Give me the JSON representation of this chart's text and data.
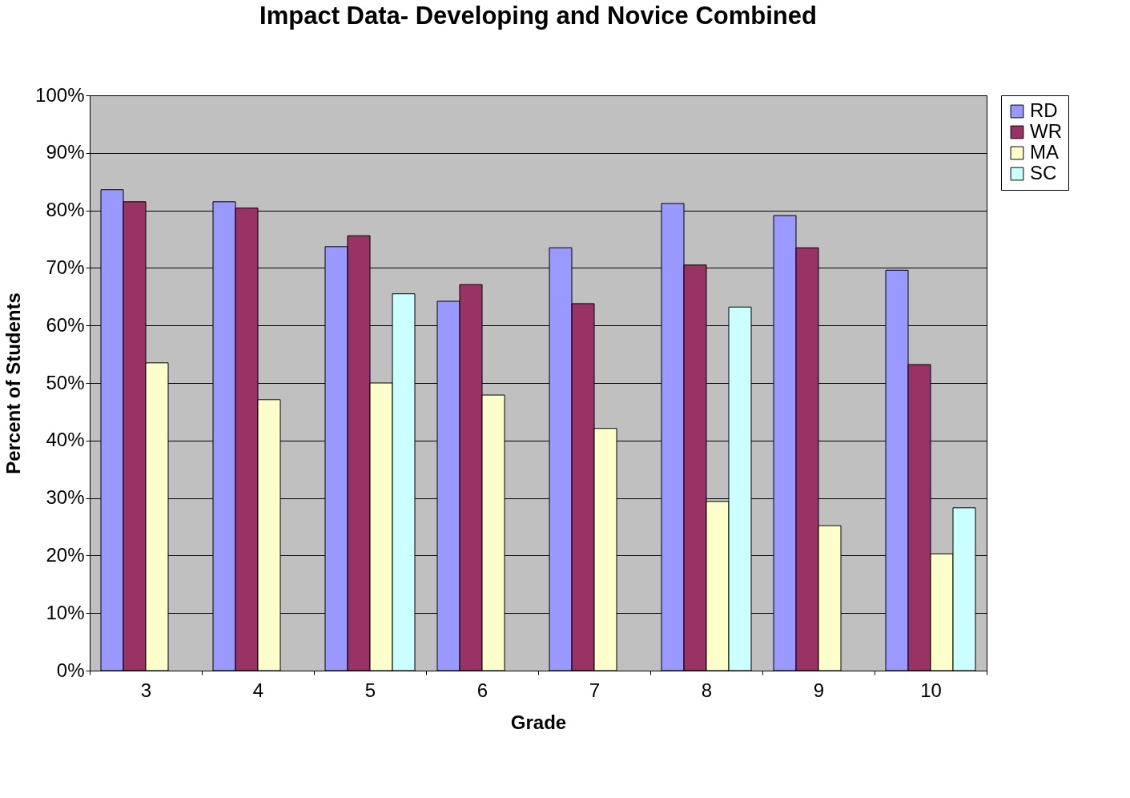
{
  "chart_data": {
    "type": "bar",
    "title": "Impact Data- Developing and Novice Combined",
    "xlabel": "Grade",
    "ylabel": "Percent of Students",
    "categories": [
      "3",
      "4",
      "5",
      "6",
      "7",
      "8",
      "9",
      "10"
    ],
    "series": [
      {
        "name": "RD",
        "color": "#9999ff",
        "values": [
          83.6,
          81.5,
          73.7,
          64.2,
          73.5,
          81.2,
          79.1,
          69.6
        ]
      },
      {
        "name": "WR",
        "color": "#993366",
        "values": [
          81.5,
          80.4,
          75.6,
          67.1,
          63.8,
          70.5,
          73.5,
          53.2
        ]
      },
      {
        "name": "MA",
        "color": "#ffffcc",
        "values": [
          53.5,
          47.1,
          50.0,
          47.9,
          42.1,
          29.4,
          25.2,
          20.3
        ]
      },
      {
        "name": "SC",
        "color": "#ccffff",
        "values": [
          null,
          null,
          65.5,
          null,
          null,
          63.2,
          null,
          28.3
        ]
      }
    ],
    "ylim": [
      0,
      100
    ],
    "yticks": [
      {
        "value": 0,
        "label": "0%"
      },
      {
        "value": 10,
        "label": "10%"
      },
      {
        "value": 20,
        "label": "20%"
      },
      {
        "value": 30,
        "label": "30%"
      },
      {
        "value": 40,
        "label": "40%"
      },
      {
        "value": 50,
        "label": "50%"
      },
      {
        "value": 60,
        "label": "60%"
      },
      {
        "value": 70,
        "label": "70%"
      },
      {
        "value": 80,
        "label": "80%"
      },
      {
        "value": 90,
        "label": "90%"
      },
      {
        "value": 100,
        "label": "100%"
      }
    ],
    "grid": "y",
    "legend": "right"
  }
}
